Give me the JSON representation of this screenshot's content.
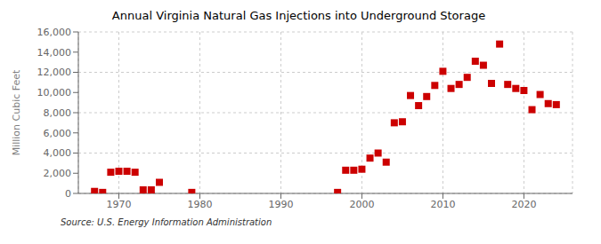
{
  "chart_data": {
    "type": "scatter",
    "title": "Annual Virginia Natural Gas Injections into Underground Storage",
    "ylabel": "Million Cubic Feet",
    "annotations": [
      "Source: U.S. Energy Information Administration"
    ],
    "x": [
      1967,
      1968,
      1969,
      1970,
      1971,
      1972,
      1973,
      1974,
      1975,
      1979,
      1997,
      1998,
      1999,
      2000,
      2001,
      2002,
      2003,
      2004,
      2005,
      2006,
      2007,
      2008,
      2009,
      2010,
      2011,
      2012,
      2013,
      2014,
      2015,
      2016,
      2017,
      2018,
      2019,
      2020,
      2021,
      2022,
      2023,
      2024
    ],
    "values": [
      200,
      100,
      2100,
      2200,
      2200,
      2100,
      350,
      350,
      1100,
      100,
      100,
      2300,
      2300,
      2400,
      3500,
      4000,
      3100,
      7000,
      7100,
      9700,
      8700,
      9600,
      10700,
      12100,
      10400,
      10800,
      11500,
      13100,
      12700,
      10900,
      14800,
      10800,
      10400,
      10200,
      8300,
      9800,
      8900,
      8800
    ],
    "color": "#cc0000",
    "marker": "square",
    "xlim": [
      1965,
      2026
    ],
    "ylim": [
      0,
      16000
    ],
    "xticks": [
      1970,
      1980,
      1990,
      2000,
      2010,
      2020
    ],
    "yticks": [
      0,
      {
        "value": 2000,
        "label": "2,000"
      },
      {
        "value": 4000,
        "label": "4,000"
      },
      {
        "value": 6000,
        "label": "6,000"
      },
      {
        "value": 8000,
        "label": "8,000"
      },
      {
        "value": 10000,
        "label": "10,000"
      },
      {
        "value": 12000,
        "label": "12,000"
      },
      {
        "value": 14000,
        "label": "14,000"
      },
      {
        "value": 16000,
        "label": "16,000"
      }
    ],
    "grid": true
  }
}
